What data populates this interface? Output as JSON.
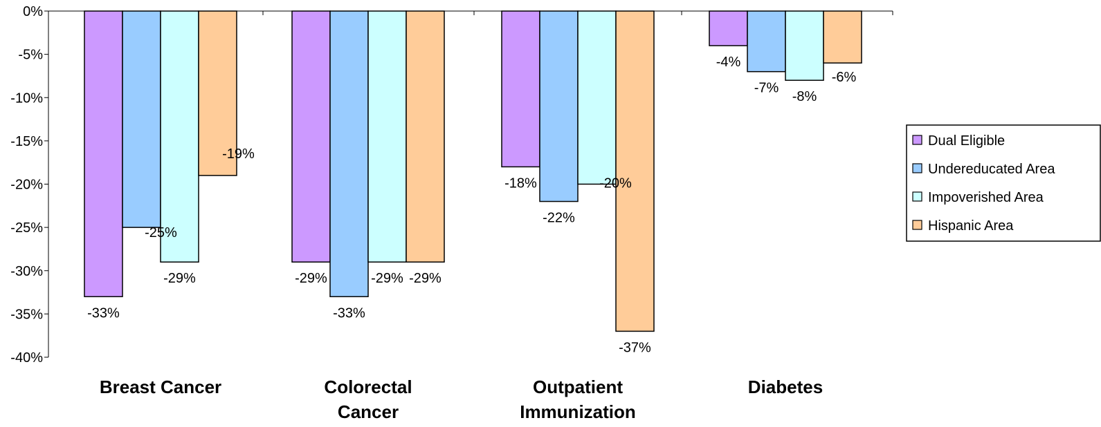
{
  "chart_data": {
    "type": "bar",
    "categories": [
      [
        "Breast Cancer"
      ],
      [
        "Colorectal",
        "Cancer"
      ],
      [
        "Outpatient",
        "Immunization"
      ],
      [
        "Diabetes"
      ]
    ],
    "series": [
      {
        "name": "Dual Eligible",
        "values": [
          -33,
          -29,
          -18,
          -4
        ]
      },
      {
        "name": "Undereducated Area",
        "values": [
          -25,
          -33,
          -22,
          -7
        ]
      },
      {
        "name": "Impoverished Area",
        "values": [
          -29,
          -29,
          -20,
          -8
        ]
      },
      {
        "name": "Hispanic Area",
        "values": [
          -19,
          -29,
          -37,
          -6
        ]
      }
    ],
    "data_labels": [
      [
        "-33%",
        "-29%",
        "-18%",
        "-4%"
      ],
      [
        "-25%",
        "-33%",
        "-22%",
        "-7%"
      ],
      [
        "-29%",
        "-29%",
        "-20%",
        "-8%"
      ],
      [
        "-19%",
        "-29%",
        "-37%",
        "-6%"
      ]
    ],
    "colors": [
      "#cc99ff",
      "#99ccff",
      "#ccffff",
      "#ffcc99"
    ],
    "ylim": [
      -40,
      0
    ],
    "yticks": [
      0,
      -5,
      -10,
      -15,
      -20,
      -25,
      -30,
      -35,
      -40
    ],
    "ytick_labels": [
      "0%",
      "-5%",
      "-10%",
      "-15%",
      "-20%",
      "-25%",
      "-30%",
      "-35%",
      "-40%"
    ],
    "legend_position": "right",
    "grid": false,
    "title": "",
    "xlabel": "",
    "ylabel": ""
  }
}
